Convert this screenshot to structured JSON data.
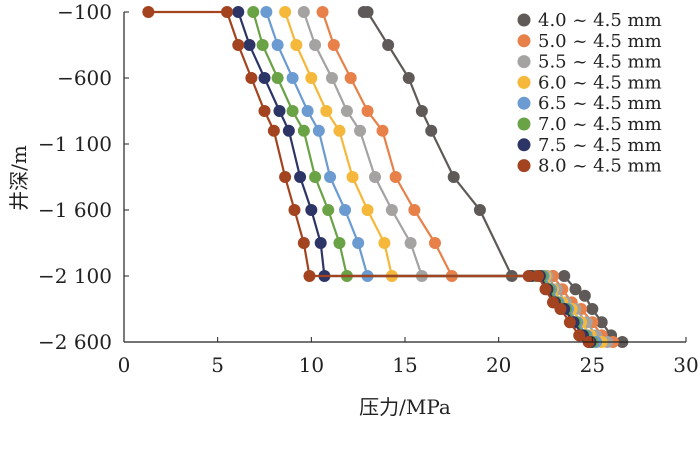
{
  "chart_data": {
    "type": "line",
    "xlabel": "压力/MPa",
    "ylabel": "井深/m",
    "xlim": [
      0,
      30
    ],
    "ylim": [
      -2600,
      -100
    ],
    "xticks": [
      0,
      5,
      10,
      15,
      20,
      25,
      30
    ],
    "xtick_labels": [
      "0",
      "5",
      "10",
      "15",
      "20",
      "25",
      "30"
    ],
    "yticks": [
      -100,
      -600,
      -1100,
      -1600,
      -2100,
      -2600
    ],
    "ytick_labels": [
      "−100",
      "−600",
      "−1 100",
      "−1 600",
      "−2 100",
      "−2 600"
    ],
    "grid": false,
    "legend_position": "top-right",
    "series": [
      {
        "name": "4.0 ~ 4.5 mm",
        "color": "#5f5a58",
        "x": [
          12.8,
          13.0,
          14.1,
          15.2,
          15.9,
          16.4,
          17.6,
          19.0,
          20.7,
          22.4,
          22.9,
          23.5,
          24.1,
          24.6,
          25.0,
          25.5,
          26.0,
          26.6
        ],
        "y": [
          -100,
          -100,
          -350,
          -600,
          -850,
          -1000,
          -1350,
          -1600,
          -2100,
          -2100,
          -2100,
          -2100,
          -2200,
          -2250,
          -2350,
          -2450,
          -2550,
          -2600
        ]
      },
      {
        "name": "5.0 ~ 4.5 mm",
        "color": "#e8804a",
        "x": [
          10.6,
          11.2,
          12.1,
          13.0,
          13.8,
          14.5,
          15.5,
          16.6,
          17.5,
          22.2,
          22.9,
          23.4,
          23.9,
          24.4,
          25.0,
          25.5,
          26.1
        ],
        "y": [
          -100,
          -350,
          -600,
          -850,
          -1000,
          -1350,
          -1600,
          -1850,
          -2100,
          -2100,
          -2100,
          -2200,
          -2300,
          -2350,
          -2450,
          -2550,
          -2600
        ]
      },
      {
        "name": "5.5 ~ 4.5 mm",
        "color": "#a5a3a2",
        "x": [
          9.6,
          10.2,
          11.1,
          11.9,
          12.6,
          13.4,
          14.3,
          15.3,
          15.9,
          22.1,
          22.6,
          23.1,
          23.6,
          24.1,
          24.7,
          25.2,
          25.8
        ],
        "y": [
          -100,
          -350,
          -600,
          -850,
          -1000,
          -1350,
          -1600,
          -1850,
          -2100,
          -2100,
          -2100,
          -2200,
          -2300,
          -2350,
          -2450,
          -2550,
          -2600
        ]
      },
      {
        "name": "6.0 ~ 4.5 mm",
        "color": "#f5b83a",
        "x": [
          8.6,
          9.2,
          10.0,
          10.8,
          11.5,
          12.2,
          13.0,
          13.9,
          14.3,
          22.0,
          22.5,
          22.9,
          23.4,
          23.9,
          24.4,
          24.9,
          25.5
        ],
        "y": [
          -100,
          -350,
          -600,
          -850,
          -1000,
          -1350,
          -1600,
          -1850,
          -2100,
          -2100,
          -2100,
          -2200,
          -2300,
          -2350,
          -2450,
          -2550,
          -2600
        ]
      },
      {
        "name": "6.5 ~ 4.5 mm",
        "color": "#6b9bd0",
        "x": [
          7.6,
          8.2,
          9.0,
          9.8,
          10.4,
          11.0,
          11.8,
          12.5,
          13.0,
          21.9,
          22.4,
          22.8,
          23.2,
          23.7,
          24.2,
          24.7,
          25.2
        ],
        "y": [
          -100,
          -350,
          -600,
          -850,
          -1000,
          -1350,
          -1600,
          -1850,
          -2100,
          -2100,
          -2100,
          -2200,
          -2300,
          -2350,
          -2450,
          -2550,
          -2600
        ]
      },
      {
        "name": "7.0 ~ 4.5 mm",
        "color": "#6aa246",
        "x": [
          6.9,
          7.4,
          8.2,
          9.0,
          9.6,
          10.2,
          10.9,
          11.5,
          11.9,
          21.8,
          22.3,
          22.7,
          23.1,
          23.6,
          24.1,
          24.6,
          25.0
        ],
        "y": [
          -100,
          -350,
          -600,
          -850,
          -1000,
          -1350,
          -1600,
          -1850,
          -2100,
          -2100,
          -2100,
          -2200,
          -2300,
          -2350,
          -2450,
          -2550,
          -2600
        ]
      },
      {
        "name": "7.5 ~ 4.5 mm",
        "color": "#2c3565",
        "x": [
          6.1,
          6.7,
          7.5,
          8.3,
          8.8,
          9.4,
          10.0,
          10.5,
          10.7,
          21.7,
          22.2,
          22.6,
          23.0,
          23.5,
          24.0,
          24.5,
          24.9
        ],
        "y": [
          -100,
          -350,
          -600,
          -850,
          -1000,
          -1350,
          -1600,
          -1850,
          -2100,
          -2100,
          -2100,
          -2200,
          -2300,
          -2350,
          -2450,
          -2550,
          -2600
        ]
      },
      {
        "name": "8.0 ~ 4.5 mm",
        "color": "#a3431f",
        "x": [
          1.3,
          5.5,
          6.1,
          6.8,
          7.5,
          8.0,
          8.6,
          9.1,
          9.6,
          9.9,
          21.6,
          22.1,
          22.5,
          22.9,
          23.3,
          23.8,
          24.3,
          24.8
        ],
        "y": [
          -100,
          -100,
          -350,
          -600,
          -850,
          -1000,
          -1350,
          -1600,
          -1850,
          -2100,
          -2100,
          -2100,
          -2200,
          -2300,
          -2350,
          -2450,
          -2550,
          -2600
        ]
      }
    ]
  }
}
